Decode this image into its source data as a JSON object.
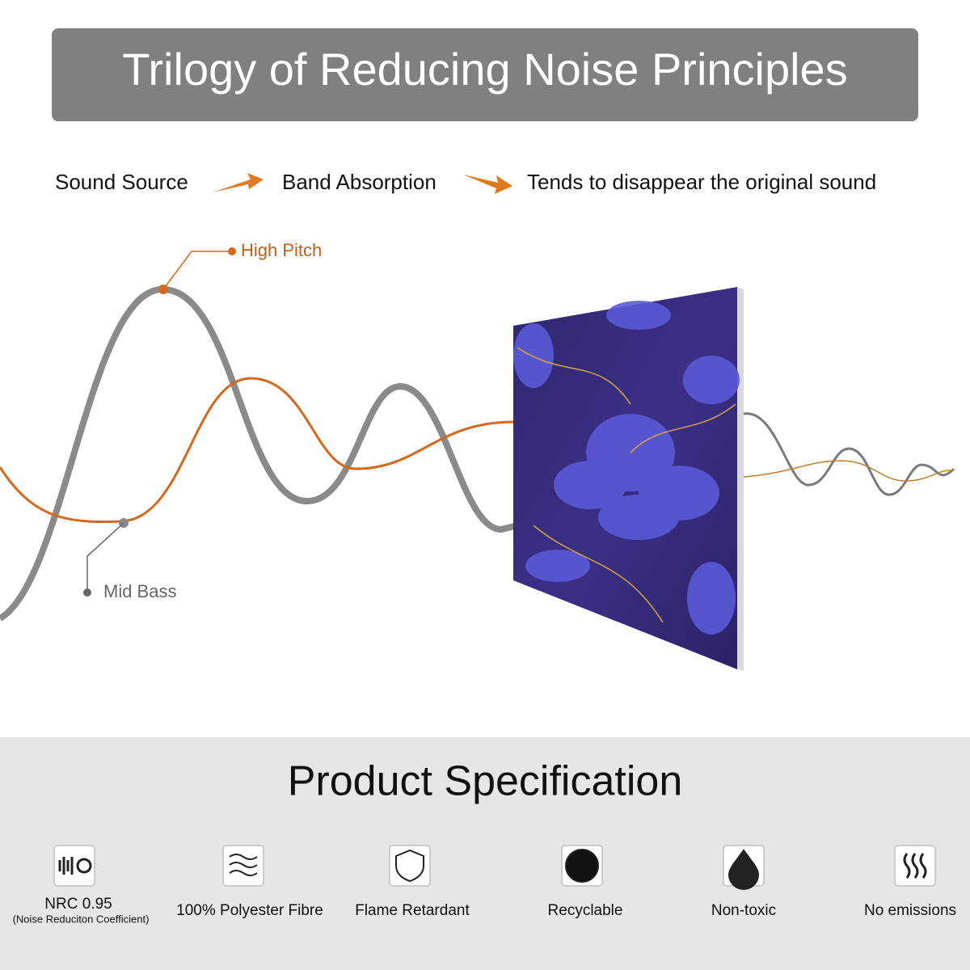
{
  "header": {
    "title": "Trilogy of Reducing Noise Principles"
  },
  "flow": {
    "steps": [
      "Sound Source",
      "Band Absorption",
      "Tends to disappear the original sound"
    ]
  },
  "waves": {
    "high_label": "High Pitch",
    "low_label": "Mid Bass"
  },
  "spec": {
    "title": "Product Specification",
    "features": [
      {
        "label": "NRC 0.95",
        "note": "(Noise Reduciton Coefficient)"
      },
      {
        "label": "100% Polyester Fibre"
      },
      {
        "label": "Flame Retardant"
      },
      {
        "label": "Recyclable"
      },
      {
        "label": "Non-toxic"
      },
      {
        "label": "No emissions"
      }
    ]
  }
}
